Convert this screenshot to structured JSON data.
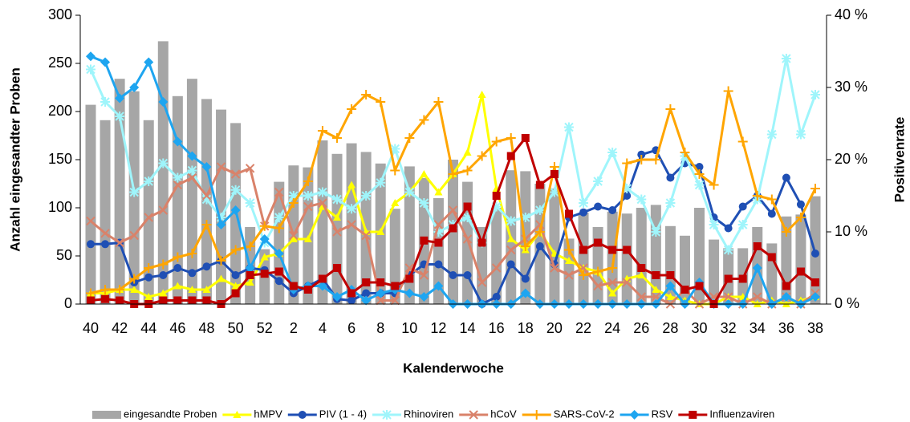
{
  "chart_data": {
    "type": "combo",
    "y_axis_title": "Anzahl eingesandter Proben",
    "y2_axis_title": "Positivenrate",
    "x_axis_title": "Kalenderwoche",
    "categories": [
      "40",
      null,
      "42",
      null,
      "44",
      null,
      "46",
      null,
      "48",
      null,
      "50",
      null,
      "52",
      null,
      "2",
      null,
      "4",
      null,
      "6",
      null,
      "8",
      null,
      "10",
      null,
      "12",
      null,
      "14",
      null,
      "16",
      null,
      "18",
      null,
      "20",
      null,
      "22",
      null,
      "24",
      null,
      "26",
      null,
      "28",
      null,
      "30",
      null,
      "32",
      null,
      "34",
      null,
      "36",
      null,
      "38"
    ],
    "ylim": [
      0,
      300
    ],
    "yticks": [
      0,
      50,
      100,
      150,
      200,
      250,
      300
    ],
    "y2lim": [
      0,
      40
    ],
    "y2ticks": [
      {
        "value": 0,
        "label": "0 %"
      },
      {
        "value": 10,
        "label": "10 %"
      },
      {
        "value": 20,
        "label": "20 %"
      },
      {
        "value": 30,
        "label": "30 %"
      },
      {
        "value": 40,
        "label": "40 %"
      }
    ],
    "series": [
      {
        "name": "eingesandte Proben",
        "type": "bar",
        "color": "#a6a6a6",
        "values": [
          207,
          191,
          234,
          221,
          191,
          273,
          216,
          234,
          213,
          202,
          188,
          80,
          57,
          127,
          144,
          142,
          170,
          156,
          167,
          158,
          146,
          99,
          143,
          131,
          110,
          150,
          127,
          80,
          100,
          139,
          138,
          125,
          120,
          68,
          95,
          80,
          96,
          94,
          100,
          103,
          81,
          71,
          100,
          67,
          58,
          58,
          80,
          63,
          91,
          93,
          112
        ]
      },
      {
        "name": "hMPV",
        "type": "line",
        "axis": "y2",
        "marker": "triangle",
        "color": "#ffff00",
        "values": [
          1.5,
          1.5,
          2,
          2,
          1,
          1.5,
          2.5,
          2,
          2,
          3.5,
          2.5,
          3,
          6.5,
          7,
          9,
          9,
          13.5,
          12,
          16.5,
          10,
          10,
          14,
          15.5,
          18,
          15.5,
          18,
          21,
          29,
          16,
          9,
          7.5,
          10,
          7,
          6,
          5,
          4.5,
          1.5,
          3.5,
          4,
          2,
          1,
          0.5,
          0,
          0,
          1,
          1,
          0,
          0.5,
          0,
          0.5,
          1
        ]
      },
      {
        "name": "PIV (1 - 4)",
        "type": "line",
        "axis": "y2",
        "marker": "circle",
        "color": "#1f4fb4",
        "values": [
          8.3,
          8.3,
          8.5,
          3,
          3.7,
          4,
          5,
          4.3,
          5.2,
          6,
          4,
          5,
          4.7,
          3.2,
          1.5,
          2.5,
          3.5,
          0.7,
          0.5,
          1.5,
          1.5,
          1.5,
          4,
          5.5,
          5.5,
          4,
          4,
          0,
          1,
          5.5,
          3.5,
          8,
          5.5,
          12,
          12.7,
          13.5,
          13,
          15,
          20.7,
          21.3,
          17.5,
          19.5,
          19,
          12,
          10.5,
          13.5,
          15,
          12.5,
          17.5,
          13.8,
          7
        ]
      },
      {
        "name": "Rhinoviren",
        "type": "line",
        "axis": "y2",
        "marker": "asterisk",
        "color": "#9ff5fb",
        "values": [
          32.5,
          28,
          26,
          15.5,
          17,
          19.5,
          17.5,
          18.5,
          14.5,
          12,
          15.8,
          14,
          8.5,
          12,
          15,
          15,
          15.5,
          14.5,
          13.2,
          15,
          16.8,
          21.5,
          15.5,
          14,
          10,
          11,
          12,
          8.5,
          13.5,
          11.5,
          12,
          13,
          15.5,
          24.5,
          14,
          17,
          21,
          16,
          14.5,
          10,
          14,
          20.5,
          16.5,
          11,
          7.5,
          11,
          14.5,
          23.5,
          34,
          23.5,
          29
        ]
      },
      {
        "name": "hCoV",
        "type": "line",
        "axis": "y2",
        "marker": "x",
        "color": "#d9826a",
        "values": [
          11.5,
          9.8,
          8.5,
          9.5,
          12,
          13,
          16.5,
          17.5,
          15,
          19,
          18,
          18.8,
          10.8,
          15.5,
          9.5,
          13.5,
          14,
          10,
          11,
          9.5,
          0.5,
          0.5,
          5,
          4,
          11,
          13,
          9,
          3,
          5,
          7.5,
          9,
          11,
          5,
          4,
          5,
          2.5,
          3,
          3,
          1,
          1,
          0,
          2,
          0,
          1,
          1,
          0,
          1,
          0,
          1,
          0,
          1.5
        ]
      },
      {
        "name": "SARS-CoV-2",
        "type": "line",
        "axis": "y2",
        "marker": "plus",
        "color": "#ffa500",
        "values": [
          1.5,
          2,
          2,
          3.5,
          5,
          5.5,
          6.5,
          7,
          11,
          6,
          7.5,
          8,
          10.8,
          10.5,
          14,
          17,
          24,
          23,
          27,
          29,
          28,
          18.5,
          23,
          25.5,
          28,
          18,
          18.5,
          20.5,
          22.5,
          23,
          8,
          10,
          19,
          7.5,
          4,
          4.5,
          5,
          19.5,
          20,
          20,
          27,
          21,
          18,
          16.5,
          29.5,
          22.5,
          15,
          14.5,
          10,
          12,
          16
        ]
      },
      {
        "name": "RSV",
        "type": "line",
        "axis": "y2",
        "marker": "diamond",
        "color": "#1ea5f0",
        "values": [
          34.3,
          33.5,
          28.5,
          30,
          33.5,
          28,
          22.5,
          20.5,
          19,
          11,
          13,
          5,
          9,
          7,
          2,
          2.5,
          2.5,
          1,
          2,
          0.5,
          1.5,
          2,
          1.5,
          1,
          2.5,
          0,
          0,
          0,
          0,
          0,
          1.5,
          0,
          0,
          0,
          0,
          0,
          0,
          0,
          0,
          0,
          2.5,
          0,
          3,
          0,
          0,
          0,
          5,
          0,
          1,
          0,
          1
        ]
      },
      {
        "name": "Influenzaviren",
        "type": "line",
        "axis": "y2",
        "marker": "square",
        "color": "#c00000",
        "values": [
          0.5,
          0.7,
          0.5,
          0,
          0,
          0.5,
          0.5,
          0.5,
          0.5,
          0,
          1.5,
          4,
          4.2,
          4.5,
          2.5,
          2,
          3.5,
          5,
          1.5,
          3,
          3,
          2.5,
          3.5,
          8.8,
          8.5,
          10.5,
          13.5,
          8.5,
          15,
          20.5,
          23,
          16.5,
          18,
          12.5,
          7.5,
          8.5,
          7.5,
          7.5,
          5,
          4,
          4,
          2,
          2.5,
          0,
          3.5,
          3.5,
          8,
          6.5,
          2.5,
          4.5,
          3
        ]
      }
    ]
  }
}
